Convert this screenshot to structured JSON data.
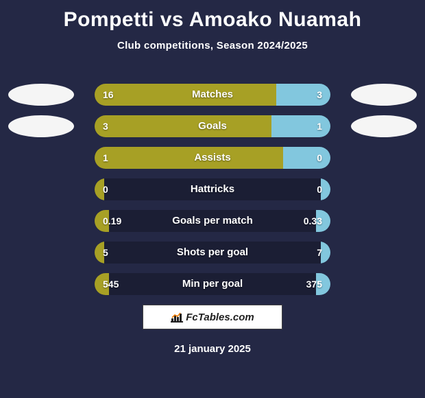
{
  "colors": {
    "background": "#242845",
    "text": "#ffffff",
    "left_series": "#a7a025",
    "right_series": "#82c7de",
    "ellipse_left": "#f5f5f5",
    "ellipse_right": "#f5f5f5",
    "track": "#1b1e34",
    "footer_bg": "#ffffff",
    "footer_text": "#1f1f1f",
    "footer_accent": "#f07c00"
  },
  "typography": {
    "title_fontsize": 30,
    "subtitle_fontsize": 15,
    "label_fontsize": 15,
    "value_fontsize": 14
  },
  "header": {
    "title": "Pompetti vs Amoako Nuamah",
    "subtitle": "Club competitions, Season 2024/2025"
  },
  "rows": [
    {
      "label": "Matches",
      "left_val": "16",
      "right_val": "3",
      "left_pct": 77,
      "right_pct": 23,
      "show_ellipses": true
    },
    {
      "label": "Goals",
      "left_val": "3",
      "right_val": "1",
      "left_pct": 75,
      "right_pct": 25,
      "show_ellipses": true
    },
    {
      "label": "Assists",
      "left_val": "1",
      "right_val": "0",
      "left_pct": 80,
      "right_pct": 20,
      "show_ellipses": false
    },
    {
      "label": "Hattricks",
      "left_val": "0",
      "right_val": "0",
      "left_pct": 4,
      "right_pct": 4,
      "show_ellipses": false
    },
    {
      "label": "Goals per match",
      "left_val": "0.19",
      "right_val": "0.33",
      "left_pct": 6,
      "right_pct": 6,
      "show_ellipses": false
    },
    {
      "label": "Shots per goal",
      "left_val": "5",
      "right_val": "7",
      "left_pct": 4,
      "right_pct": 4,
      "show_ellipses": false
    },
    {
      "label": "Min per goal",
      "left_val": "545",
      "right_val": "375",
      "left_pct": 6,
      "right_pct": 6,
      "show_ellipses": false
    }
  ],
  "footer": {
    "brand": "FcTables.com",
    "date": "21 january 2025"
  }
}
